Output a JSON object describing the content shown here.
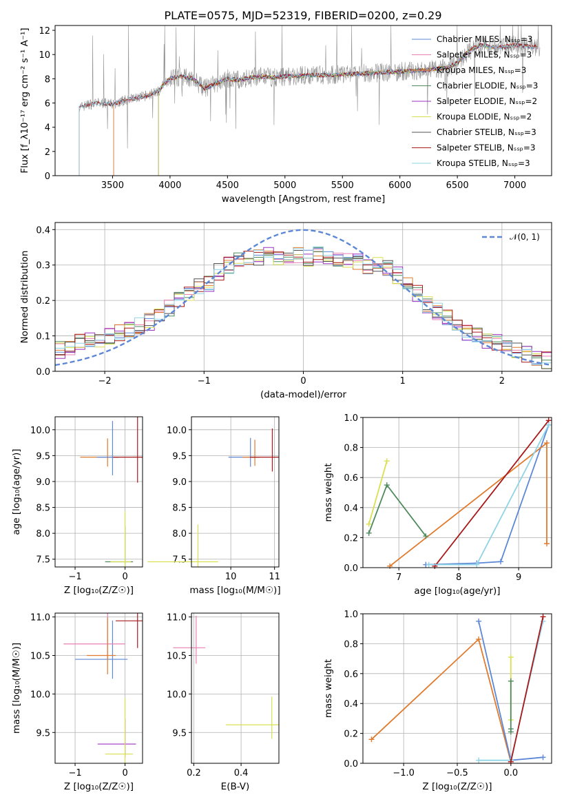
{
  "figure_title": "PLATE=0575, MJD=52319, FIBERID=0200, z=0.29",
  "colors": {
    "chabrier_miles": "#5b87d6",
    "salpeter_miles": "#e87fb0",
    "kroupa_miles": "#e07a2c",
    "chabrier_elodie": "#4f8a5c",
    "salpeter_elodie": "#9b30c0",
    "kroupa_elodie": "#d8e050",
    "chabrier_stelib": "#505050",
    "salpeter_stelib": "#a81818",
    "kroupa_stelib": "#8fd3e6",
    "normal": "#5b87d6",
    "data": "#909090"
  },
  "chart_data": [
    {
      "type": "line",
      "title": "PLATE=0575, MJD=52319, FIBERID=0200, z=0.29",
      "xlabel": "wavelength [Angstrom, rest frame]",
      "ylabel": "Flux [f_λ10⁻¹⁷ erg cm⁻² s⁻¹ A⁻¹]",
      "xlim": [
        3000,
        7320
      ],
      "ylim": [
        0,
        12.4
      ],
      "xticks": [
        "3500",
        "4000",
        "4500",
        "5000",
        "5500",
        "6000",
        "6500",
        "7000"
      ],
      "yticks": [
        "0",
        "2",
        "4",
        "6",
        "8",
        "10",
        "12"
      ],
      "legend_position": "top-right",
      "legend": [
        "Chabrier MILES, N_SSP=3",
        "Salpeter MILES, N_SSP=3",
        "Kroupa MILES, N_SSP=3",
        "Chabrier ELODIE, N_SSP=3",
        "Salpeter ELODIE, N_SSP=2",
        "Kroupa ELODIE, N_SSP=2",
        "Chabrier STELIB, N_SSP=3",
        "Salpeter STELIB, N_SSP=3",
        "Kroupa STELIB, N_SSP=3"
      ],
      "continuum": {
        "x": [
          3200,
          3300,
          3400,
          3500,
          3600,
          3700,
          3800,
          3900,
          3950,
          4000,
          4100,
          4200,
          4300,
          4400,
          4500,
          4600,
          4700,
          4800,
          4900,
          5000,
          5200,
          5400,
          5600,
          5800,
          6000,
          6200,
          6400,
          6500,
          6600,
          6700,
          6800,
          6900,
          7000,
          7100,
          7200
        ],
        "y": [
          5.6,
          5.9,
          6.0,
          5.9,
          6.2,
          6.4,
          6.6,
          7.0,
          7.6,
          8.0,
          8.2,
          8.0,
          7.2,
          7.6,
          8.0,
          7.9,
          8.1,
          8.2,
          8.1,
          8.2,
          8.3,
          8.3,
          8.4,
          8.5,
          8.6,
          8.7,
          8.9,
          9.3,
          10.3,
          10.8,
          10.6,
          10.6,
          10.8,
          10.7,
          10.6
        ]
      }
    },
    {
      "type": "line",
      "xlabel": "(data-model)/error",
      "ylabel": "Normed distribution",
      "xlim": [
        -2.5,
        2.5
      ],
      "ylim": [
        0,
        0.42
      ],
      "xticks": [
        "−2",
        "−1",
        "0",
        "1",
        "2"
      ],
      "yticks": [
        "0.0",
        "0.1",
        "0.2",
        "0.3",
        "0.4"
      ],
      "legend": [
        "𝒩(0, 1)"
      ],
      "legend_position": "top-right",
      "histogram_x": [
        -2.5,
        -2.4,
        -2.3,
        -2.2,
        -2.1,
        -2.0,
        -1.9,
        -1.8,
        -1.7,
        -1.6,
        -1.5,
        -1.4,
        -1.3,
        -1.2,
        -1.1,
        -1.0,
        -0.9,
        -0.8,
        -0.7,
        -0.6,
        -0.5,
        -0.4,
        -0.3,
        -0.2,
        -0.1,
        0.0,
        0.1,
        0.2,
        0.3,
        0.4,
        0.5,
        0.6,
        0.7,
        0.8,
        0.9,
        1.0,
        1.1,
        1.2,
        1.3,
        1.4,
        1.5,
        1.6,
        1.7,
        1.8,
        1.9,
        2.0,
        2.1,
        2.2,
        2.3,
        2.4
      ],
      "histogram_y": [
        0.06,
        0.07,
        0.08,
        0.09,
        0.09,
        0.1,
        0.11,
        0.12,
        0.13,
        0.14,
        0.16,
        0.18,
        0.2,
        0.22,
        0.24,
        0.25,
        0.28,
        0.3,
        0.31,
        0.32,
        0.32,
        0.33,
        0.32,
        0.33,
        0.33,
        0.32,
        0.33,
        0.32,
        0.32,
        0.31,
        0.31,
        0.3,
        0.3,
        0.29,
        0.27,
        0.25,
        0.22,
        0.19,
        0.17,
        0.15,
        0.13,
        0.11,
        0.1,
        0.09,
        0.08,
        0.07,
        0.06,
        0.05,
        0.04,
        0.03
      ]
    },
    {
      "type": "scatter",
      "xlabel": "Z [log₁₀(Z/Z☉)]",
      "ylabel": "age  [log₁₀(age/yr)]",
      "xlim": [
        -1.4,
        0.35
      ],
      "ylim": [
        7.35,
        10.25
      ],
      "xticks": [
        "−1",
        "0"
      ],
      "yticks": [
        "7.5",
        "8.0",
        "8.5",
        "9.0",
        "9.5",
        "10.0"
      ],
      "points": [
        {
          "series": "Kroupa MILES",
          "x": -0.35,
          "y": 9.47
        },
        {
          "series": "Chabrier MILES",
          "x": -0.25,
          "y": 9.47
        },
        {
          "series": "Salpeter STELIB",
          "x": 0.25,
          "y": 9.47
        },
        {
          "series": "Chabrier ELODIE",
          "x": 0.0,
          "y": 7.45
        },
        {
          "series": "Kroupa ELODIE",
          "x": 0.0,
          "y": 7.45
        }
      ]
    },
    {
      "type": "scatter",
      "xlabel": "mass [log₁₀(M/M☉)]",
      "xlim": [
        9.1,
        11.1
      ],
      "ylim": [
        7.35,
        10.25
      ],
      "xticks": [
        "10",
        "11"
      ],
      "yticks": [
        "7.5",
        "8.0",
        "8.5",
        "9.0",
        "9.5",
        "10.0"
      ],
      "points": [
        {
          "series": "Chabrier MILES",
          "x": 10.45,
          "y": 9.47
        },
        {
          "series": "Kroupa MILES",
          "x": 10.55,
          "y": 9.47
        },
        {
          "series": "Salpeter STELIB",
          "x": 10.95,
          "y": 9.47
        },
        {
          "series": "Kroupa ELODIE",
          "x": 9.25,
          "y": 7.45
        }
      ]
    },
    {
      "type": "line",
      "xlabel": "age  [log₁₀(age/yr)]",
      "ylabel": "mass weight",
      "xlim": [
        6.4,
        9.55
      ],
      "ylim": [
        0,
        1.0
      ],
      "xticks": [
        "7",
        "8",
        "9"
      ],
      "yticks": [
        "0.0",
        "0.2",
        "0.4",
        "0.6",
        "0.8",
        "1.0"
      ],
      "series": [
        {
          "name": "Chabrier MILES",
          "x": [
            7.45,
            8.3,
            8.7,
            9.5
          ],
          "y": [
            0.02,
            0.03,
            0.04,
            0.95
          ]
        },
        {
          "name": "Kroupa MILES",
          "x": [
            6.85,
            9.47,
            9.47
          ],
          "y": [
            0.01,
            0.83,
            0.16
          ]
        },
        {
          "name": "Chabrier ELODIE",
          "x": [
            6.5,
            6.8,
            7.45
          ],
          "y": [
            0.23,
            0.55,
            0.21
          ]
        },
        {
          "name": "Kroupa ELODIE",
          "x": [
            6.5,
            6.8
          ],
          "y": [
            0.29,
            0.71
          ]
        },
        {
          "name": "Salpeter STELIB",
          "x": [
            7.6,
            9.5
          ],
          "y": [
            0.01,
            0.98
          ]
        },
        {
          "name": "Kroupa STELIB",
          "x": [
            7.5,
            8.3,
            9.5
          ],
          "y": [
            0.02,
            0.02,
            0.95
          ]
        }
      ]
    },
    {
      "type": "scatter",
      "xlabel": "Z [log₁₀(Z/Z☉)]",
      "ylabel": "mass [log₁₀(M/M☉)]",
      "xlim": [
        -1.4,
        0.35
      ],
      "ylim": [
        9.1,
        11.05
      ],
      "xticks": [
        "−1",
        "0"
      ],
      "yticks": [
        "9.5",
        "10.0",
        "10.5",
        "11.0"
      ],
      "points": [
        {
          "series": "Chabrier MILES",
          "x": -0.25,
          "y": 10.45
        },
        {
          "series": "Salpeter MILES",
          "x": -0.35,
          "y": 10.65
        },
        {
          "series": "Kroupa MILES",
          "x": -0.35,
          "y": 10.5
        },
        {
          "series": "Salpeter STELIB",
          "x": 0.25,
          "y": 10.95
        },
        {
          "series": "Salpeter ELODIE",
          "x": 0.0,
          "y": 9.35
        },
        {
          "series": "Kroupa ELODIE",
          "x": 0.0,
          "y": 9.22
        }
      ]
    },
    {
      "type": "scatter",
      "xlabel": "E(B-V)",
      "xlim": [
        0.19,
        0.56
      ],
      "ylim": [
        9.1,
        11.05
      ],
      "xticks": [
        "0.2",
        "0.4"
      ],
      "yticks": [
        "9.5",
        "10.0",
        "10.5",
        "11.0"
      ],
      "points": [
        {
          "series": "MILES",
          "x": 0.21,
          "y": 10.6
        },
        {
          "series": "ELODIE",
          "x": 0.53,
          "y": 9.6
        }
      ]
    },
    {
      "type": "line",
      "xlabel": "Z [log₁₀(Z/Z☉)]",
      "ylabel": "mass weight",
      "xlim": [
        -1.38,
        0.38
      ],
      "ylim": [
        0,
        1.0
      ],
      "xticks": [
        "−1.0",
        "−0.5",
        "0.0"
      ],
      "yticks": [
        "0.0",
        "0.2",
        "0.4",
        "0.6",
        "0.8",
        "1.0"
      ],
      "series": [
        {
          "name": "Kroupa MILES",
          "x": [
            -1.3,
            -0.3,
            0.0
          ],
          "y": [
            0.16,
            0.83,
            0.01
          ]
        },
        {
          "name": "Chabrier MILES",
          "x": [
            -0.3,
            0.0,
            0.3
          ],
          "y": [
            0.95,
            0.02,
            0.04
          ]
        },
        {
          "name": "Kroupa STELIB",
          "x": [
            -0.3,
            0.0,
            0.3
          ],
          "y": [
            0.02,
            0.02,
            0.95
          ]
        },
        {
          "name": "Salpeter STELIB",
          "x": [
            0.0,
            0.3
          ],
          "y": [
            0.01,
            0.98
          ]
        },
        {
          "name": "Kroupa ELODIE",
          "x": [
            0.0,
            0.0
          ],
          "y": [
            0.29,
            0.71
          ]
        },
        {
          "name": "Chabrier ELODIE",
          "x": [
            0.0,
            0.0,
            0.0
          ],
          "y": [
            0.21,
            0.23,
            0.55
          ]
        }
      ]
    }
  ]
}
